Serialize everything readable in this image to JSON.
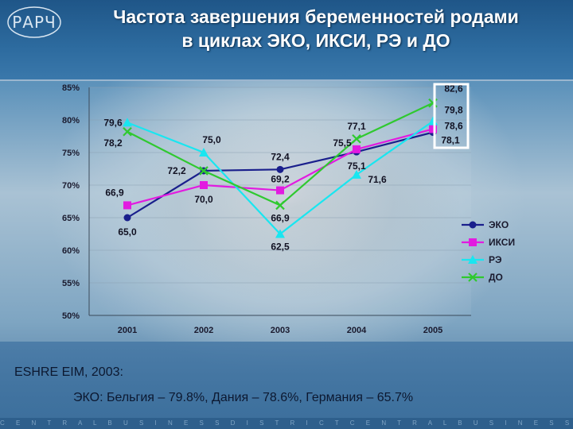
{
  "header": {
    "logo_text": "РАРЧ",
    "title_line1": "Частота завершения беременностей родами",
    "title_line2": "в циклах ЭКО, ИКСИ, РЭ и ДО"
  },
  "caption": {
    "line1": "ESHRE EIM, 2003:",
    "line2": "ЭКО: Бельгия – 79.8%, Дания – 78.6%, Германия – 65.7%"
  },
  "footer_text": "C E N T R A L B U S I N E S S D I S T R I C T C E N T R A L B U S I N E S S D I S T R I C T C E N T R A",
  "chart_data": {
    "type": "line",
    "categories": [
      "2001",
      "2002",
      "2003",
      "2004",
      "2005"
    ],
    "ylim": [
      50,
      85
    ],
    "yticks": [
      "50%",
      "55%",
      "60%",
      "65%",
      "70%",
      "75%",
      "80%",
      "85%"
    ],
    "series": [
      {
        "name": "ЭКО",
        "color": "#1a1f8c",
        "marker": "circle",
        "values": [
          65.0,
          72.2,
          72.4,
          75.1,
          78.1
        ],
        "labels": [
          "65,0",
          "72,2",
          "72,4",
          "75,1",
          "78,1"
        ]
      },
      {
        "name": "ИКСИ",
        "color": "#e21be0",
        "marker": "square",
        "values": [
          66.9,
          70.0,
          69.2,
          75.5,
          78.6
        ],
        "labels": [
          "66,9",
          "70,0",
          "69,2",
          "75,5",
          "78,6"
        ]
      },
      {
        "name": "РЭ",
        "color": "#19e6f0",
        "marker": "triangle",
        "values": [
          79.6,
          75.0,
          62.5,
          71.6,
          79.8
        ],
        "labels": [
          "79,6",
          "75,0",
          "62,5",
          "71,6",
          "79,8"
        ]
      },
      {
        "name": "ДО",
        "color": "#2fc92f",
        "marker": "x",
        "values": [
          78.2,
          72.2,
          66.9,
          77.1,
          82.6
        ],
        "labels": [
          "78,2",
          "",
          "66,9",
          "77,1",
          "82,6"
        ]
      }
    ],
    "legend_position": "right"
  }
}
